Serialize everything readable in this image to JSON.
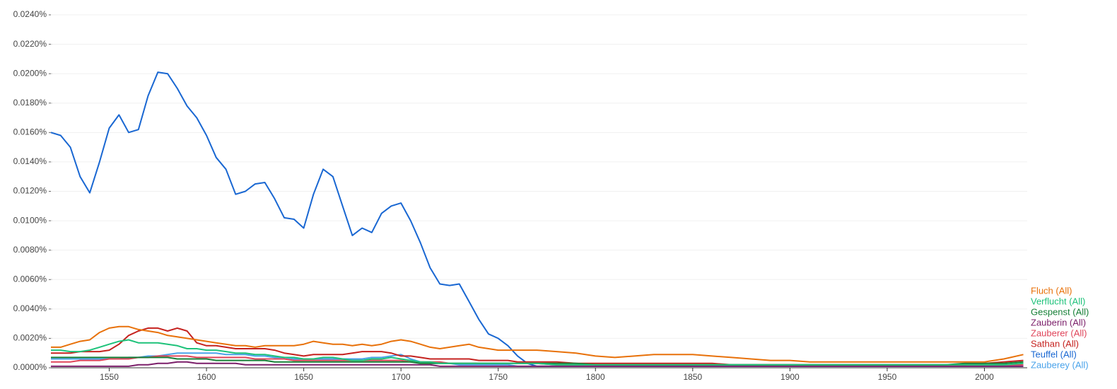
{
  "chart_data": {
    "type": "line",
    "x": [
      1520,
      1525,
      1530,
      1535,
      1540,
      1545,
      1550,
      1555,
      1560,
      1565,
      1570,
      1575,
      1580,
      1585,
      1590,
      1595,
      1600,
      1605,
      1610,
      1615,
      1620,
      1625,
      1630,
      1635,
      1640,
      1645,
      1650,
      1655,
      1660,
      1665,
      1670,
      1675,
      1680,
      1685,
      1690,
      1695,
      1700,
      1705,
      1710,
      1715,
      1720,
      1725,
      1730,
      1735,
      1740,
      1745,
      1750,
      1755,
      1760,
      1765,
      1770,
      1780,
      1790,
      1800,
      1810,
      1820,
      1830,
      1840,
      1850,
      1860,
      1870,
      1880,
      1890,
      1900,
      1910,
      1920,
      1930,
      1940,
      1950,
      1960,
      1970,
      1980,
      1990,
      2000,
      2010,
      2020
    ],
    "xlim": [
      1520,
      2022
    ],
    "xticks": [
      1550,
      1600,
      1650,
      1700,
      1750,
      1800,
      1850,
      1900,
      1950,
      2000
    ],
    "ylim": [
      0,
      0.024
    ],
    "yticks": [
      {
        "value": 0,
        "label": "0.0000%"
      },
      {
        "value": 0.002,
        "label": "0.0020%"
      },
      {
        "value": 0.004,
        "label": "0.0040%"
      },
      {
        "value": 0.006,
        "label": "0.0060%"
      },
      {
        "value": 0.008,
        "label": "0.0080%"
      },
      {
        "value": 0.01,
        "label": "0.0100%"
      },
      {
        "value": 0.012,
        "label": "0.0120%"
      },
      {
        "value": 0.014,
        "label": "0.0140%"
      },
      {
        "value": 0.016,
        "label": "0.0160%"
      },
      {
        "value": 0.018,
        "label": "0.0180%"
      },
      {
        "value": 0.02,
        "label": "0.0200%"
      },
      {
        "value": 0.022,
        "label": "0.0220%"
      },
      {
        "value": 0.024,
        "label": "0.0240%"
      }
    ],
    "grid": true,
    "series": [
      {
        "name": "Fluch (All)",
        "color": "#e8710a",
        "values": [
          0.0014,
          0.0014,
          0.0016,
          0.0018,
          0.0019,
          0.0024,
          0.0027,
          0.0028,
          0.0028,
          0.0026,
          0.0025,
          0.0024,
          0.0022,
          0.0021,
          0.002,
          0.0019,
          0.0018,
          0.0017,
          0.0016,
          0.0015,
          0.0015,
          0.0014,
          0.0015,
          0.0015,
          0.0015,
          0.0015,
          0.0016,
          0.0018,
          0.0017,
          0.0016,
          0.0016,
          0.0015,
          0.0016,
          0.0015,
          0.0016,
          0.0018,
          0.0019,
          0.0018,
          0.0016,
          0.0014,
          0.0013,
          0.0014,
          0.0015,
          0.0016,
          0.0014,
          0.0013,
          0.0012,
          0.0012,
          0.0012,
          0.0012,
          0.0012,
          0.0011,
          0.001,
          0.0008,
          0.0007,
          0.0008,
          0.0009,
          0.0009,
          0.0009,
          0.0008,
          0.0007,
          0.0006,
          0.0005,
          0.0005,
          0.0004,
          0.0004,
          0.0004,
          0.0004,
          0.0004,
          0.0004,
          0.0004,
          0.0004,
          0.0004,
          0.0004,
          0.0006,
          0.0009
        ]
      },
      {
        "name": "Verflucht (All)",
        "color": "#1ec27a",
        "values": [
          0.0012,
          0.0012,
          0.0011,
          0.0011,
          0.0012,
          0.0014,
          0.0016,
          0.0018,
          0.0019,
          0.0017,
          0.0017,
          0.0017,
          0.0016,
          0.0015,
          0.0013,
          0.0013,
          0.0012,
          0.0012,
          0.0011,
          0.001,
          0.001,
          0.0009,
          0.0009,
          0.0008,
          0.0007,
          0.0007,
          0.0006,
          0.0006,
          0.0007,
          0.0007,
          0.0006,
          0.0005,
          0.0005,
          0.0006,
          0.0006,
          0.0007,
          0.0006,
          0.0005,
          0.0004,
          0.0004,
          0.0003,
          0.0003,
          0.0003,
          0.0003,
          0.0003,
          0.0003,
          0.0003,
          0.0003,
          0.0003,
          0.0003,
          0.0003,
          0.0002,
          0.0002,
          0.0002,
          0.0002,
          0.0002,
          0.0002,
          0.0002,
          0.0002,
          0.0002,
          0.0002,
          0.0002,
          0.0002,
          0.0002,
          0.0002,
          0.0002,
          0.0002,
          0.0002,
          0.0002,
          0.0002,
          0.0002,
          0.0002,
          0.0002,
          0.0002,
          0.0002,
          0.0003
        ]
      },
      {
        "name": "Gespenst (All)",
        "color": "#188038",
        "values": [
          0.0007,
          0.0007,
          0.0007,
          0.0007,
          0.0007,
          0.0007,
          0.0007,
          0.0007,
          0.0007,
          0.0007,
          0.0007,
          0.0007,
          0.0007,
          0.0006,
          0.0006,
          0.0006,
          0.0006,
          0.0005,
          0.0005,
          0.0005,
          0.0005,
          0.0005,
          0.0005,
          0.0004,
          0.0004,
          0.0004,
          0.0004,
          0.0004,
          0.0004,
          0.0004,
          0.0004,
          0.0004,
          0.0004,
          0.0004,
          0.0004,
          0.0004,
          0.0004,
          0.0004,
          0.0003,
          0.0003,
          0.0003,
          0.0003,
          0.0003,
          0.0003,
          0.0003,
          0.0003,
          0.0003,
          0.0003,
          0.0003,
          0.0003,
          0.0003,
          0.0003,
          0.0003,
          0.0002,
          0.0002,
          0.0002,
          0.0002,
          0.0002,
          0.0002,
          0.0002,
          0.0002,
          0.0002,
          0.0002,
          0.0002,
          0.0002,
          0.0002,
          0.0002,
          0.0002,
          0.0002,
          0.0002,
          0.0002,
          0.0002,
          0.0003,
          0.0003,
          0.0003,
          0.0004
        ]
      },
      {
        "name": "Zauberin (All)",
        "color": "#7b1f6a",
        "values": [
          0.0001,
          0.0001,
          0.0001,
          0.0001,
          0.0001,
          0.0001,
          0.0001,
          0.0001,
          0.0001,
          0.0002,
          0.0002,
          0.0003,
          0.0003,
          0.0004,
          0.0004,
          0.0003,
          0.0003,
          0.0003,
          0.0003,
          0.0003,
          0.0002,
          0.0002,
          0.0002,
          0.0002,
          0.0002,
          0.0002,
          0.0002,
          0.0002,
          0.0002,
          0.0002,
          0.0002,
          0.0002,
          0.0002,
          0.0002,
          0.0002,
          0.0002,
          0.0002,
          0.0002,
          0.0002,
          0.0002,
          0.0001,
          0.0001,
          0.0001,
          0.0001,
          0.0001,
          0.0001,
          0.0001,
          0.0001,
          0.0001,
          0.0001,
          0.0001,
          0.0001,
          0.0001,
          0.0001,
          0.0001,
          0.0001,
          0.0001,
          0.0001,
          0.0001,
          0.0001,
          0.0001,
          0.0001,
          0.0001,
          0.0001,
          0.0001,
          0.0001,
          0.0001,
          0.0001,
          0.0001,
          0.0001,
          0.0001,
          0.0001,
          0.0001,
          0.0001,
          0.0001,
          0.0001
        ]
      },
      {
        "name": "Zauberer (All)",
        "color": "#e0455a",
        "values": [
          0.0004,
          0.0004,
          0.0004,
          0.0005,
          0.0005,
          0.0005,
          0.0006,
          0.0006,
          0.0006,
          0.0007,
          0.0007,
          0.0008,
          0.0008,
          0.0008,
          0.0008,
          0.0007,
          0.0007,
          0.0007,
          0.0007,
          0.0007,
          0.0007,
          0.0006,
          0.0006,
          0.0006,
          0.0006,
          0.0005,
          0.0005,
          0.0005,
          0.0005,
          0.0005,
          0.0005,
          0.0005,
          0.0005,
          0.0005,
          0.0005,
          0.0005,
          0.0005,
          0.0004,
          0.0004,
          0.0004,
          0.0004,
          0.0003,
          0.0003,
          0.0003,
          0.0003,
          0.0003,
          0.0003,
          0.0003,
          0.0003,
          0.0003,
          0.0003,
          0.0002,
          0.0002,
          0.0002,
          0.0002,
          0.0002,
          0.0002,
          0.0002,
          0.0002,
          0.0002,
          0.0002,
          0.0002,
          0.0002,
          0.0002,
          0.0002,
          0.0002,
          0.0002,
          0.0002,
          0.0002,
          0.0002,
          0.0002,
          0.0002,
          0.0002,
          0.0002,
          0.0002,
          0.0002
        ]
      },
      {
        "name": "Sathan (All)",
        "color": "#c5221f",
        "values": [
          0.001,
          0.001,
          0.001,
          0.0011,
          0.0011,
          0.0011,
          0.0012,
          0.0016,
          0.0022,
          0.0025,
          0.0027,
          0.0027,
          0.0025,
          0.0027,
          0.0025,
          0.0017,
          0.0015,
          0.0015,
          0.0014,
          0.0013,
          0.0013,
          0.0013,
          0.0013,
          0.0012,
          0.001,
          0.0009,
          0.0008,
          0.0009,
          0.0009,
          0.0009,
          0.0009,
          0.001,
          0.0011,
          0.0011,
          0.0011,
          0.001,
          0.0008,
          0.0008,
          0.0007,
          0.0006,
          0.0006,
          0.0006,
          0.0006,
          0.0006,
          0.0005,
          0.0005,
          0.0005,
          0.0005,
          0.0004,
          0.0004,
          0.0004,
          0.0004,
          0.0003,
          0.0003,
          0.0003,
          0.0003,
          0.0003,
          0.0003,
          0.0003,
          0.0003,
          0.0002,
          0.0002,
          0.0002,
          0.0002,
          0.0002,
          0.0002,
          0.0002,
          0.0002,
          0.0002,
          0.0002,
          0.0002,
          0.0002,
          0.0002,
          0.0003,
          0.0004,
          0.0005
        ]
      },
      {
        "name": "Teuffel (All)",
        "color": "#1967d2",
        "values": [
          0.016,
          0.0158,
          0.015,
          0.013,
          0.0119,
          0.014,
          0.0163,
          0.0172,
          0.016,
          0.0162,
          0.0185,
          0.0201,
          0.02,
          0.019,
          0.0178,
          0.017,
          0.0158,
          0.0143,
          0.0135,
          0.0118,
          0.012,
          0.0125,
          0.0126,
          0.0115,
          0.0102,
          0.0101,
          0.0095,
          0.0118,
          0.0135,
          0.013,
          0.011,
          0.009,
          0.0095,
          0.0092,
          0.0105,
          0.011,
          0.0112,
          0.01,
          0.0085,
          0.0068,
          0.0057,
          0.0056,
          0.0057,
          0.0045,
          0.0033,
          0.0023,
          0.002,
          0.0015,
          0.0008,
          0.0003,
          0.0001,
          0.0001,
          0.0001,
          0.0001,
          0.0001,
          0.0001,
          0.0001,
          0.0001,
          0.0001,
          0.0001,
          0.0001,
          0.0001,
          0.0001,
          0.0001,
          0.0001,
          0.0001,
          0.0001,
          0.0001,
          0.0001,
          0.0001,
          0.0001,
          0.0001,
          0.0001,
          0.0001,
          0.0001,
          0.0001
        ]
      },
      {
        "name": "Zauberey (All)",
        "color": "#4aa3ea",
        "values": [
          0.0006,
          0.0006,
          0.0006,
          0.0006,
          0.0006,
          0.0006,
          0.0006,
          0.0006,
          0.0007,
          0.0007,
          0.0008,
          0.0008,
          0.0009,
          0.001,
          0.001,
          0.001,
          0.001,
          0.001,
          0.0009,
          0.0009,
          0.0009,
          0.0008,
          0.0008,
          0.0007,
          0.0007,
          0.0006,
          0.0006,
          0.0006,
          0.0006,
          0.0006,
          0.0006,
          0.0006,
          0.0006,
          0.0007,
          0.0007,
          0.0008,
          0.0009,
          0.0006,
          0.0004,
          0.0003,
          0.0003,
          0.0003,
          0.0002,
          0.0002,
          0.0002,
          0.0002,
          0.0002,
          0.0002,
          0.0001,
          0.0001,
          0.0001,
          0.0001,
          0.0001,
          0.0001,
          0.0001,
          0.0001,
          0.0001,
          0.0001,
          0.0001,
          0.0001,
          0.0001,
          0.0001,
          0.0001,
          0.0001,
          0.0001,
          0.0001,
          0.0001,
          0.0001,
          0.0001,
          0.0001,
          0.0001,
          0.0001,
          0.0001,
          0.0001,
          0.0001,
          0.0001
        ]
      }
    ]
  }
}
